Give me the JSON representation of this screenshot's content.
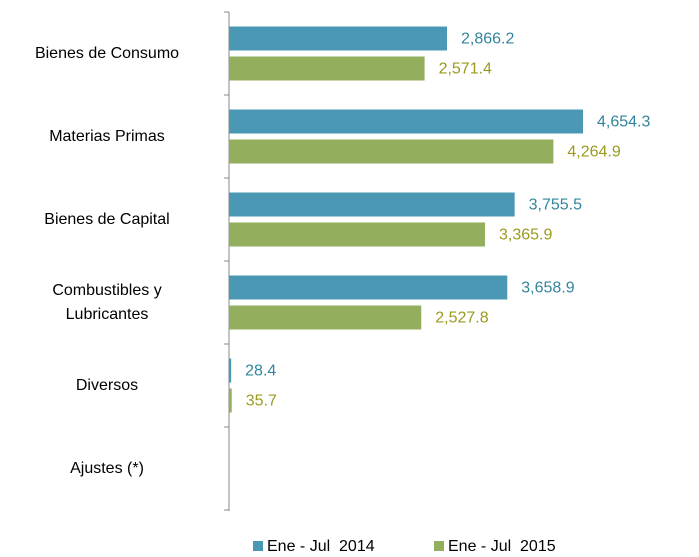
{
  "chart_data": {
    "type": "bar",
    "orientation": "horizontal",
    "categories": [
      "Bienes de Consumo",
      "Materias Primas",
      "Bienes de Capital",
      "Combustibles y\nLubricantes",
      "Diversos",
      "Ajustes (*)"
    ],
    "series": [
      {
        "name": "Ene - Jul  2014",
        "color": "#4a98b4",
        "label_color": "#31859c",
        "values": [
          2866.2,
          4654.3,
          3755.5,
          3658.9,
          28.4,
          null
        ],
        "value_labels": [
          "2,866.2",
          "4,654.3",
          "3,755.5",
          "3,658.9",
          "28.4",
          null
        ]
      },
      {
        "name": "Ene - Jul  2015",
        "color": "#93ae5c",
        "label_color": "#9a9a1e",
        "values": [
          2571.4,
          4264.9,
          3365.9,
          2527.8,
          35.7,
          null
        ],
        "value_labels": [
          "2,571.4",
          "4,264.9",
          "3,365.9",
          "2,527.8",
          "35.7",
          null
        ]
      }
    ],
    "legend": "bottom"
  }
}
